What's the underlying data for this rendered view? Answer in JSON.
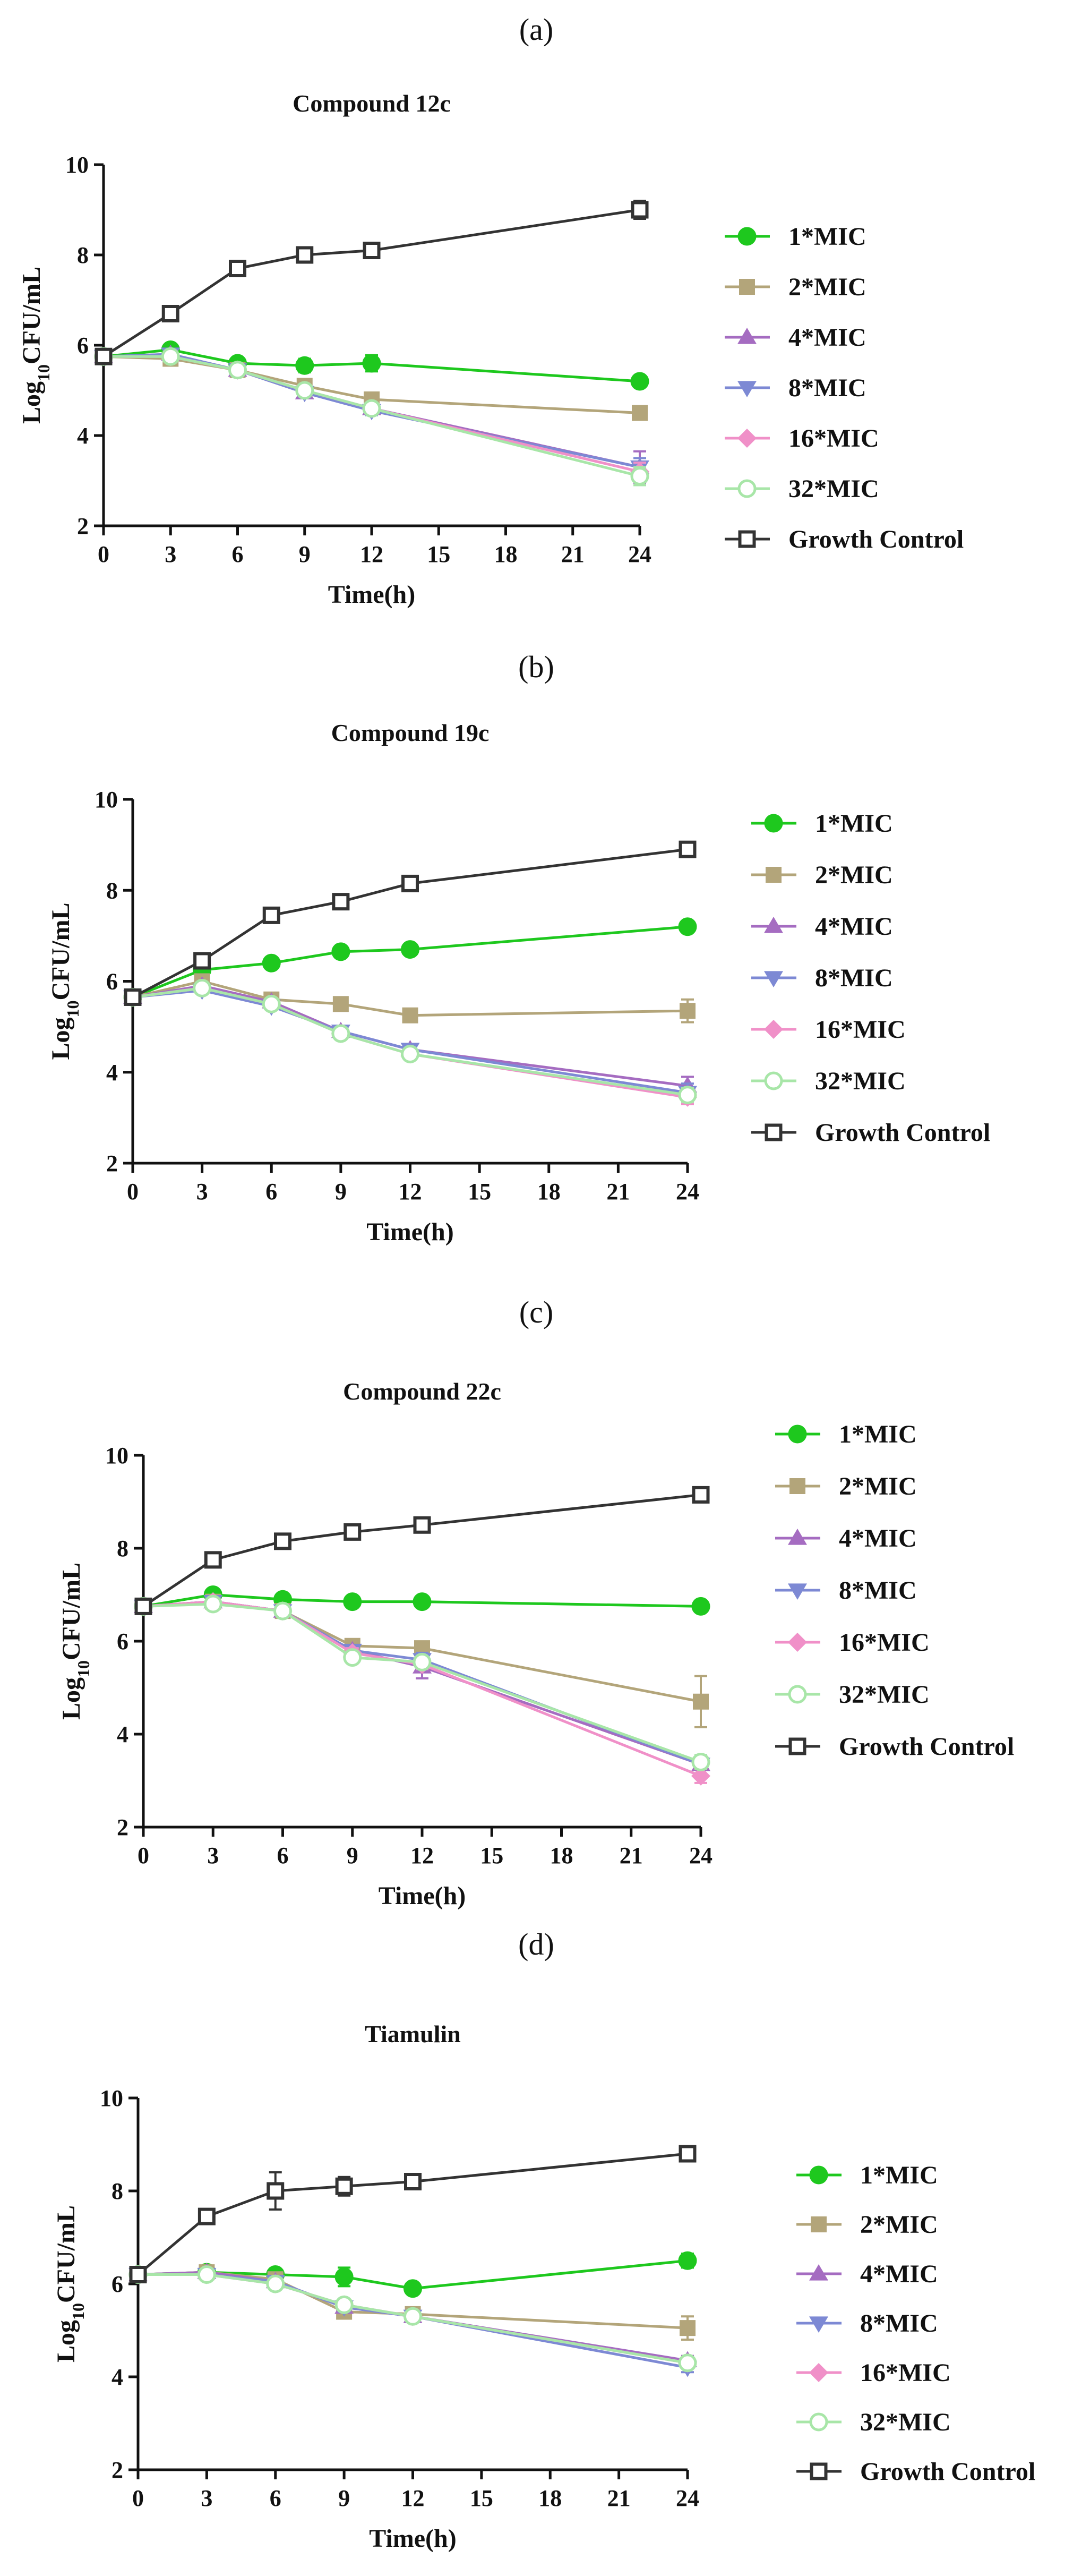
{
  "chart_data": [
    {
      "panel": "(a)",
      "type": "line",
      "title": "Compound 12c",
      "xlabel": "Time(h)",
      "ylabel": "Log10CFU/mL",
      "xlim": [
        0,
        24
      ],
      "ylim": [
        2,
        10
      ],
      "xticks": [
        0,
        3,
        6,
        9,
        12,
        15,
        18,
        21,
        24
      ],
      "yticks": [
        2,
        4,
        6,
        8,
        10
      ],
      "x": [
        0,
        3,
        6,
        9,
        12,
        24
      ],
      "series": [
        {
          "name": "1*MIC",
          "color": "#1ec81e",
          "marker": "circle-filled",
          "values": [
            5.75,
            5.9,
            5.6,
            5.55,
            5.6,
            5.2
          ],
          "err": [
            0.05,
            0.05,
            0.05,
            0.15,
            0.18,
            0.05
          ]
        },
        {
          "name": "2*MIC",
          "color": "#b3a57a",
          "marker": "square-filled",
          "values": [
            5.75,
            5.7,
            5.45,
            5.1,
            4.8,
            4.5
          ],
          "err": [
            0.05,
            0.05,
            0.05,
            0.1,
            0.1,
            0.1
          ]
        },
        {
          "name": "4*MIC",
          "color": "#a56cc1",
          "marker": "triangle-up",
          "values": [
            5.75,
            5.8,
            5.45,
            4.95,
            4.6,
            3.3
          ],
          "err": [
            0.05,
            0.05,
            0.05,
            0.1,
            0.1,
            0.35
          ]
        },
        {
          "name": "8*MIC",
          "color": "#7d89d4",
          "marker": "triangle-down",
          "values": [
            5.75,
            5.8,
            5.45,
            4.95,
            4.55,
            3.3
          ],
          "err": [
            0.05,
            0.05,
            0.05,
            0.1,
            0.1,
            0.2
          ]
        },
        {
          "name": "16*MIC",
          "color": "#f090c8",
          "marker": "diamond",
          "values": [
            5.75,
            5.75,
            5.45,
            5.0,
            4.6,
            3.2
          ],
          "err": [
            0.05,
            0.05,
            0.05,
            0.1,
            0.1,
            0.2
          ]
        },
        {
          "name": "32*MIC",
          "color": "#a8e6a8",
          "marker": "circle-open",
          "values": [
            5.75,
            5.75,
            5.45,
            5.0,
            4.6,
            3.1
          ],
          "err": [
            0.05,
            0.05,
            0.05,
            0.1,
            0.1,
            0.2
          ]
        },
        {
          "name": "Growth Control",
          "color": "#333333",
          "marker": "square-open",
          "values": [
            5.75,
            6.7,
            7.7,
            8.0,
            8.1,
            9.0
          ],
          "err": [
            0.05,
            0.08,
            0.08,
            0.08,
            0.08,
            0.2
          ]
        }
      ]
    },
    {
      "panel": "(b)",
      "type": "line",
      "title": "Compound 19c",
      "xlabel": "Time(h)",
      "ylabel": "Log10CFU/mL",
      "xlim": [
        0,
        24
      ],
      "ylim": [
        2,
        10
      ],
      "xticks": [
        0,
        3,
        6,
        9,
        12,
        15,
        18,
        21,
        24
      ],
      "yticks": [
        2,
        4,
        6,
        8,
        10
      ],
      "x": [
        0,
        3,
        6,
        9,
        12,
        24
      ],
      "series": [
        {
          "name": "1*MIC",
          "color": "#1ec81e",
          "marker": "circle-filled",
          "values": [
            5.65,
            6.25,
            6.4,
            6.65,
            6.7,
            7.2
          ],
          "err": [
            0.05,
            0.05,
            0.05,
            0.05,
            0.05,
            0.05
          ]
        },
        {
          "name": "2*MIC",
          "color": "#b3a57a",
          "marker": "square-filled",
          "values": [
            5.65,
            6.0,
            5.6,
            5.5,
            5.25,
            5.35
          ],
          "err": [
            0.05,
            0.05,
            0.05,
            0.05,
            0.05,
            0.25
          ]
        },
        {
          "name": "4*MIC",
          "color": "#a56cc1",
          "marker": "triangle-up",
          "values": [
            5.65,
            5.9,
            5.55,
            4.9,
            4.5,
            3.7
          ],
          "err": [
            0.05,
            0.05,
            0.05,
            0.1,
            0.1,
            0.2
          ]
        },
        {
          "name": "8*MIC",
          "color": "#7d89d4",
          "marker": "triangle-down",
          "values": [
            5.65,
            5.8,
            5.45,
            4.9,
            4.5,
            3.55
          ],
          "err": [
            0.05,
            0.05,
            0.05,
            0.1,
            0.1,
            0.2
          ]
        },
        {
          "name": "16*MIC",
          "color": "#f090c8",
          "marker": "diamond",
          "values": [
            5.65,
            5.85,
            5.5,
            4.85,
            4.4,
            3.45
          ],
          "err": [
            0.05,
            0.05,
            0.05,
            0.1,
            0.1,
            0.15
          ]
        },
        {
          "name": "32*MIC",
          "color": "#a8e6a8",
          "marker": "circle-open",
          "values": [
            5.65,
            5.85,
            5.5,
            4.85,
            4.4,
            3.5
          ],
          "err": [
            0.05,
            0.05,
            0.05,
            0.1,
            0.1,
            0.15
          ]
        },
        {
          "name": "Growth Control",
          "color": "#333333",
          "marker": "square-open",
          "values": [
            5.65,
            6.45,
            7.45,
            7.75,
            8.15,
            8.9
          ],
          "err": [
            0.05,
            0.08,
            0.08,
            0.08,
            0.08,
            0.08
          ]
        }
      ]
    },
    {
      "panel": "(c)",
      "type": "line",
      "title": "Compound 22c",
      "xlabel": "Time(h)",
      "ylabel": "Log10CFU/mL",
      "xlim": [
        0,
        24
      ],
      "ylim": [
        2,
        10
      ],
      "xticks": [
        0,
        3,
        6,
        9,
        12,
        15,
        18,
        21,
        24
      ],
      "yticks": [
        2,
        4,
        6,
        8,
        10
      ],
      "x": [
        0,
        3,
        6,
        9,
        12,
        24
      ],
      "series": [
        {
          "name": "1*MIC",
          "color": "#1ec81e",
          "marker": "circle-filled",
          "values": [
            6.75,
            7.0,
            6.9,
            6.85,
            6.85,
            6.75
          ],
          "err": [
            0.05,
            0.05,
            0.05,
            0.05,
            0.05,
            0.05
          ]
        },
        {
          "name": "2*MIC",
          "color": "#b3a57a",
          "marker": "square-filled",
          "values": [
            6.75,
            6.85,
            6.65,
            5.9,
            5.85,
            4.7
          ],
          "err": [
            0.05,
            0.05,
            0.05,
            0.1,
            0.1,
            0.55
          ]
        },
        {
          "name": "4*MIC",
          "color": "#a56cc1",
          "marker": "triangle-up",
          "values": [
            6.75,
            6.85,
            6.65,
            5.8,
            5.45,
            3.35
          ],
          "err": [
            0.05,
            0.05,
            0.05,
            0.1,
            0.25,
            0.2
          ]
        },
        {
          "name": "8*MIC",
          "color": "#7d89d4",
          "marker": "triangle-down",
          "values": [
            6.75,
            6.85,
            6.65,
            5.8,
            5.6,
            3.35
          ],
          "err": [
            0.05,
            0.05,
            0.05,
            0.1,
            0.15,
            0.2
          ]
        },
        {
          "name": "16*MIC",
          "color": "#f090c8",
          "marker": "diamond",
          "values": [
            6.75,
            6.85,
            6.65,
            5.75,
            5.5,
            3.1
          ],
          "err": [
            0.05,
            0.05,
            0.05,
            0.1,
            0.1,
            0.15
          ]
        },
        {
          "name": "32*MIC",
          "color": "#a8e6a8",
          "marker": "circle-open",
          "values": [
            6.75,
            6.8,
            6.65,
            5.65,
            5.55,
            3.4
          ],
          "err": [
            0.05,
            0.05,
            0.05,
            0.1,
            0.1,
            0.15
          ]
        },
        {
          "name": "Growth Control",
          "color": "#333333",
          "marker": "square-open",
          "values": [
            6.75,
            7.75,
            8.15,
            8.35,
            8.5,
            9.15
          ],
          "err": [
            0.05,
            0.08,
            0.08,
            0.08,
            0.08,
            0.08
          ]
        }
      ]
    },
    {
      "panel": "(d)",
      "type": "line",
      "title": "Tiamulin",
      "xlabel": "Time(h)",
      "ylabel": "Log10CFU/mL",
      "xlim": [
        0,
        24
      ],
      "ylim": [
        2,
        10
      ],
      "xticks": [
        0,
        3,
        6,
        9,
        12,
        15,
        18,
        21,
        24
      ],
      "yticks": [
        2,
        4,
        6,
        8,
        10
      ],
      "x": [
        0,
        3,
        6,
        9,
        12,
        24
      ],
      "series": [
        {
          "name": "1*MIC",
          "color": "#1ec81e",
          "marker": "circle-filled",
          "values": [
            6.2,
            6.25,
            6.2,
            6.15,
            5.9,
            6.5
          ],
          "err": [
            0.05,
            0.05,
            0.05,
            0.2,
            0.05,
            0.15
          ]
        },
        {
          "name": "2*MIC",
          "color": "#b3a57a",
          "marker": "square-filled",
          "values": [
            6.2,
            6.25,
            6.1,
            5.4,
            5.35,
            5.05
          ],
          "err": [
            0.05,
            0.1,
            0.05,
            0.1,
            0.05,
            0.25
          ]
        },
        {
          "name": "4*MIC",
          "color": "#a56cc1",
          "marker": "triangle-up",
          "values": [
            6.2,
            6.25,
            6.05,
            5.5,
            5.3,
            4.35
          ],
          "err": [
            0.05,
            0.05,
            0.05,
            0.1,
            0.05,
            0.1
          ]
        },
        {
          "name": "8*MIC",
          "color": "#7d89d4",
          "marker": "triangle-down",
          "values": [
            6.2,
            6.2,
            6.05,
            5.5,
            5.3,
            4.2
          ],
          "err": [
            0.05,
            0.05,
            0.05,
            0.1,
            0.05,
            0.1
          ]
        },
        {
          "name": "16*MIC",
          "color": "#f090c8",
          "marker": "diamond",
          "values": [
            6.2,
            6.2,
            6.0,
            5.55,
            5.3,
            4.3
          ],
          "err": [
            0.05,
            0.05,
            0.05,
            0.1,
            0.05,
            0.1
          ]
        },
        {
          "name": "32*MIC",
          "color": "#a8e6a8",
          "marker": "circle-open",
          "values": [
            6.2,
            6.2,
            6.0,
            5.55,
            5.3,
            4.3
          ],
          "err": [
            0.05,
            0.05,
            0.05,
            0.1,
            0.05,
            0.1
          ]
        },
        {
          "name": "Growth Control",
          "color": "#333333",
          "marker": "square-open",
          "values": [
            6.2,
            7.45,
            8.0,
            8.1,
            8.2,
            8.8
          ],
          "err": [
            0.05,
            0.1,
            0.4,
            0.2,
            0.1,
            0.1
          ]
        }
      ]
    }
  ]
}
